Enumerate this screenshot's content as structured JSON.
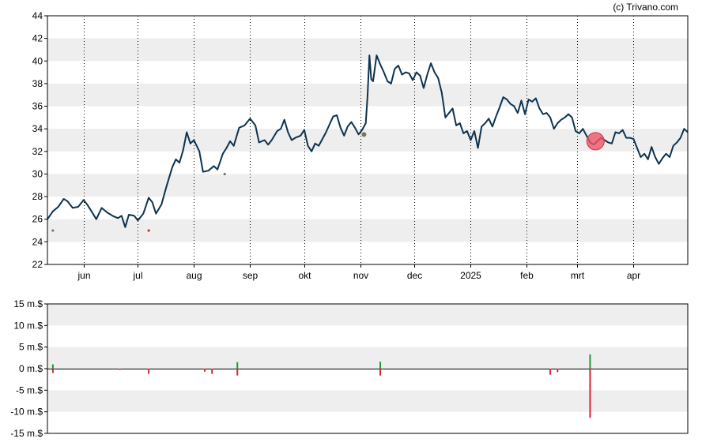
{
  "credit": "(c) Trivano.com",
  "colors": {
    "price_line": "#0d3350",
    "band": "#eeeeee",
    "marker_fill": "#ee5566",
    "dividend_gray": "#777777",
    "dividend_red": "#dd2222",
    "insider_buy": "#229933",
    "insider_sell": "#dd2233"
  },
  "chart_data": [
    {
      "type": "line",
      "name": "price",
      "ylim": [
        22,
        44
      ],
      "yticks": [
        "22",
        "24",
        "26",
        "28",
        "30",
        "32",
        "34",
        "36",
        "38",
        "40",
        "42",
        "44"
      ],
      "month_ticks": [
        {
          "label": "jun",
          "day": 20
        },
        {
          "label": "jul",
          "day": 50
        },
        {
          "label": "aug",
          "day": 81
        },
        {
          "label": "sep",
          "day": 112
        },
        {
          "label": "okt",
          "day": 142
        },
        {
          "label": "nov",
          "day": 173
        },
        {
          "label": "dec",
          "day": 203
        },
        {
          "label": "2025",
          "day": 234
        },
        {
          "label": "feb",
          "day": 265
        },
        {
          "label": "mrt",
          "day": 293
        },
        {
          "label": "apr",
          "day": 324
        }
      ],
      "xlim": [
        0,
        354
      ],
      "price": [
        [
          0,
          26.0
        ],
        [
          3,
          26.7
        ],
        [
          6,
          27.1
        ],
        [
          9,
          27.8
        ],
        [
          11,
          27.6
        ],
        [
          14,
          27.0
        ],
        [
          17,
          27.1
        ],
        [
          20,
          27.7
        ],
        [
          22,
          27.3
        ],
        [
          24,
          26.8
        ],
        [
          27,
          26.0
        ],
        [
          30,
          27.0
        ],
        [
          33,
          26.6
        ],
        [
          36,
          26.3
        ],
        [
          39,
          26.1
        ],
        [
          41,
          26.3
        ],
        [
          43,
          25.3
        ],
        [
          45,
          26.4
        ],
        [
          48,
          26.3
        ],
        [
          50,
          25.9
        ],
        [
          53,
          26.5
        ],
        [
          56,
          27.9
        ],
        [
          58,
          27.5
        ],
        [
          60,
          26.5
        ],
        [
          63,
          27.3
        ],
        [
          66,
          29.0
        ],
        [
          69,
          30.6
        ],
        [
          71,
          31.3
        ],
        [
          73,
          31.0
        ],
        [
          75,
          32.1
        ],
        [
          77,
          33.7
        ],
        [
          79,
          32.7
        ],
        [
          81,
          33.0
        ],
        [
          84,
          32.0
        ],
        [
          86,
          30.2
        ],
        [
          89,
          30.3
        ],
        [
          92,
          30.7
        ],
        [
          94,
          30.4
        ],
        [
          97,
          31.8
        ],
        [
          99,
          32.3
        ],
        [
          101,
          32.9
        ],
        [
          103,
          32.5
        ],
        [
          106,
          34.1
        ],
        [
          109,
          34.3
        ],
        [
          112,
          34.9
        ],
        [
          115,
          34.3
        ],
        [
          117,
          32.8
        ],
        [
          120,
          33.0
        ],
        [
          122,
          32.6
        ],
        [
          124,
          33.0
        ],
        [
          127,
          33.8
        ],
        [
          129,
          34.0
        ],
        [
          131,
          34.8
        ],
        [
          133,
          33.7
        ],
        [
          135,
          33.0
        ],
        [
          137,
          33.2
        ],
        [
          140,
          33.4
        ],
        [
          142,
          33.9
        ],
        [
          144,
          32.5
        ],
        [
          146,
          32.0
        ],
        [
          148,
          32.7
        ],
        [
          150,
          32.5
        ],
        [
          152,
          33.1
        ],
        [
          154,
          33.7
        ],
        [
          156,
          34.4
        ],
        [
          158,
          35.1
        ],
        [
          160,
          35.2
        ],
        [
          162,
          34.1
        ],
        [
          164,
          33.4
        ],
        [
          166,
          34.2
        ],
        [
          168,
          34.6
        ],
        [
          170,
          34.1
        ],
        [
          172,
          33.5
        ],
        [
          174,
          33.9
        ],
        [
          176,
          34.5
        ],
        [
          177,
          37.0
        ],
        [
          178,
          40.5
        ],
        [
          179,
          38.4
        ],
        [
          180,
          38.2
        ],
        [
          182,
          40.5
        ],
        [
          184,
          39.7
        ],
        [
          186,
          39.0
        ],
        [
          188,
          38.2
        ],
        [
          190,
          38.0
        ],
        [
          192,
          39.3
        ],
        [
          194,
          39.6
        ],
        [
          196,
          38.8
        ],
        [
          198,
          39.0
        ],
        [
          200,
          38.9
        ],
        [
          202,
          38.3
        ],
        [
          204,
          39.0
        ],
        [
          206,
          38.7
        ],
        [
          208,
          37.6
        ],
        [
          210,
          38.8
        ],
        [
          212,
          39.8
        ],
        [
          214,
          39.0
        ],
        [
          216,
          38.5
        ],
        [
          218,
          37.2
        ],
        [
          220,
          35.0
        ],
        [
          222,
          35.4
        ],
        [
          224,
          35.8
        ],
        [
          226,
          34.3
        ],
        [
          228,
          34.5
        ],
        [
          230,
          33.6
        ],
        [
          232,
          33.8
        ],
        [
          234,
          33.0
        ],
        [
          236,
          33.8
        ],
        [
          238,
          32.3
        ],
        [
          240,
          34.2
        ],
        [
          242,
          34.5
        ],
        [
          244,
          34.9
        ],
        [
          246,
          34.2
        ],
        [
          248,
          35.1
        ],
        [
          250,
          35.9
        ],
        [
          252,
          36.8
        ],
        [
          254,
          36.6
        ],
        [
          256,
          36.2
        ],
        [
          258,
          36.0
        ],
        [
          260,
          35.4
        ],
        [
          262,
          36.5
        ],
        [
          264,
          35.3
        ],
        [
          266,
          36.6
        ],
        [
          268,
          36.4
        ],
        [
          270,
          36.7
        ],
        [
          272,
          35.8
        ],
        [
          274,
          35.3
        ],
        [
          276,
          35.4
        ],
        [
          278,
          35.0
        ],
        [
          280,
          34.0
        ],
        [
          282,
          34.5
        ],
        [
          284,
          34.8
        ],
        [
          286,
          35.0
        ],
        [
          288,
          35.3
        ],
        [
          290,
          35.0
        ],
        [
          292,
          33.8
        ],
        [
          294,
          33.6
        ],
        [
          296,
          34.0
        ],
        [
          298,
          33.4
        ],
        [
          300,
          32.8
        ],
        [
          302,
          32.6
        ],
        [
          304,
          32.9
        ],
        [
          306,
          33.2
        ],
        [
          308,
          33.0
        ],
        [
          310,
          32.8
        ],
        [
          312,
          32.7
        ],
        [
          314,
          33.7
        ],
        [
          316,
          33.6
        ],
        [
          318,
          33.9
        ],
        [
          320,
          33.2
        ],
        [
          322,
          33.2
        ],
        [
          324,
          33.1
        ],
        [
          326,
          32.3
        ],
        [
          328,
          31.5
        ],
        [
          330,
          31.8
        ],
        [
          332,
          31.3
        ],
        [
          334,
          32.4
        ],
        [
          336,
          31.5
        ],
        [
          338,
          30.9
        ],
        [
          340,
          31.4
        ],
        [
          342,
          31.8
        ],
        [
          344,
          31.5
        ],
        [
          346,
          32.5
        ],
        [
          348,
          32.8
        ],
        [
          350,
          33.2
        ],
        [
          352,
          34.0
        ],
        [
          354,
          33.7
        ]
      ],
      "dividend_markers": [
        {
          "day": 3,
          "value": 25.0,
          "color": "gray"
        },
        {
          "day": 56,
          "value": 25.0,
          "color": "red"
        },
        {
          "day": 98,
          "value": 30.0,
          "color": "gray"
        },
        {
          "day": 175,
          "value": 33.5,
          "color": "olive"
        }
      ],
      "highlight_marker": {
        "day": 303,
        "value": 32.9
      }
    },
    {
      "type": "bar",
      "name": "insider_trades",
      "ylim": [
        -15,
        15
      ],
      "yticks": [
        "-15 m.$",
        "-10 m.$",
        "-5 m.$",
        "0 m.$",
        "5 m.$",
        "10 m.$",
        "15 m.$"
      ],
      "bars": [
        {
          "day": 3,
          "buy": 1.0,
          "sell": -1.0
        },
        {
          "day": 40,
          "buy": 0.0,
          "sell": -0.3
        },
        {
          "day": 56,
          "buy": 0.0,
          "sell": -1.2
        },
        {
          "day": 87,
          "buy": 0.0,
          "sell": -0.7
        },
        {
          "day": 91,
          "buy": 0.0,
          "sell": -1.2
        },
        {
          "day": 105,
          "buy": 1.5,
          "sell": -1.6
        },
        {
          "day": 184,
          "buy": 1.6,
          "sell": -1.6
        },
        {
          "day": 278,
          "buy": 0.0,
          "sell": -1.4
        },
        {
          "day": 282,
          "buy": 0.0,
          "sell": -0.8
        },
        {
          "day": 300,
          "buy": 3.3,
          "sell": -11.4
        }
      ]
    }
  ]
}
